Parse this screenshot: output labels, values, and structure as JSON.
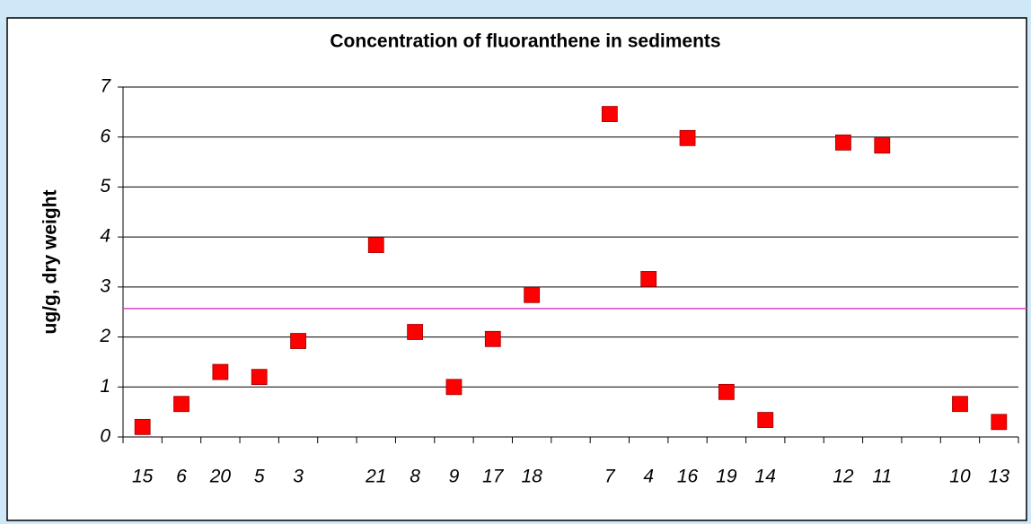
{
  "chart_data": {
    "type": "scatter",
    "title": "Concentration of fluoranthene in sediments",
    "y_label": "ug/g, dry weight",
    "categories": [
      "15",
      "6",
      "20",
      "5",
      "3",
      null,
      "21",
      "8",
      "9",
      "17",
      "18",
      null,
      "7",
      "4",
      "16",
      "19",
      "14",
      null,
      "12",
      "11",
      null,
      "10",
      "13"
    ],
    "values": [
      0.2,
      0.66,
      1.3,
      1.2,
      1.92,
      null,
      3.84,
      2.1,
      1.0,
      1.96,
      2.84,
      null,
      6.46,
      3.16,
      5.98,
      0.9,
      0.34,
      null,
      5.89,
      5.83,
      null,
      0.66,
      0.3
    ],
    "color": "#ff0000",
    "reference_line": 2.57,
    "reference_color": "#e040c0",
    "ylim": [
      0,
      7
    ],
    "yticks": [
      0,
      1,
      2,
      3,
      4,
      5,
      6,
      7
    ],
    "grid": true
  }
}
